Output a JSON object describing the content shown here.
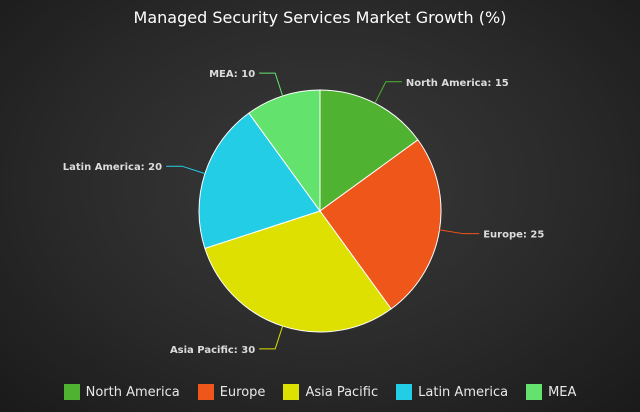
{
  "chart_data": {
    "type": "pie",
    "title": "Managed Security Services Market Growth (%)",
    "legend_position": "bottom",
    "slices": [
      {
        "label": "North America",
        "value": 15,
        "color": "#4fb331",
        "data_label": "North America: 15"
      },
      {
        "label": "Europe",
        "value": 25,
        "color": "#ee561a",
        "data_label": "Europe: 25"
      },
      {
        "label": "Asia Pacific",
        "value": 30,
        "color": "#dde000",
        "data_label": "Asia Pacific: 30"
      },
      {
        "label": "Latin America",
        "value": 20,
        "color": "#24cde6",
        "data_label": "Latin America: 20"
      },
      {
        "label": "MEA",
        "value": 10,
        "color": "#63e36e",
        "data_label": "MEA: 10"
      }
    ]
  }
}
